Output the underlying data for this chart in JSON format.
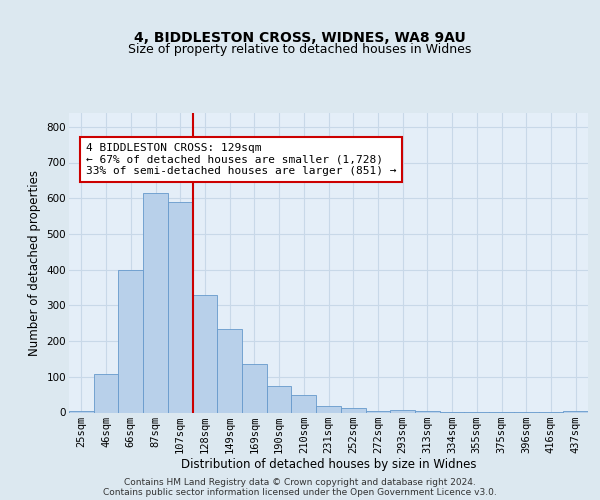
{
  "title1": "4, BIDDLESTON CROSS, WIDNES, WA8 9AU",
  "title2": "Size of property relative to detached houses in Widnes",
  "xlabel": "Distribution of detached houses by size in Widnes",
  "ylabel": "Number of detached properties",
  "categories": [
    "25sqm",
    "46sqm",
    "66sqm",
    "87sqm",
    "107sqm",
    "128sqm",
    "149sqm",
    "169sqm",
    "190sqm",
    "210sqm",
    "231sqm",
    "252sqm",
    "272sqm",
    "293sqm",
    "313sqm",
    "334sqm",
    "355sqm",
    "375sqm",
    "396sqm",
    "416sqm",
    "437sqm"
  ],
  "bar_heights": [
    5,
    107,
    400,
    615,
    590,
    328,
    235,
    135,
    75,
    50,
    18,
    13,
    5,
    6,
    3,
    2,
    2,
    1,
    1,
    1,
    5
  ],
  "bar_color": "#b8d0ea",
  "bar_edge_color": "#6699cc",
  "vline_color": "#cc0000",
  "vline_pos": 5,
  "annotation_text": "4 BIDDLESTON CROSS: 129sqm\n← 67% of detached houses are smaller (1,728)\n33% of semi-detached houses are larger (851) →",
  "annotation_box_color": "#ffffff",
  "annotation_box_edge": "#cc0000",
  "grid_color": "#c8d8e8",
  "background_color": "#dce8f0",
  "plot_bg_color": "#e4eef8",
  "ylim": [
    0,
    840
  ],
  "yticks": [
    0,
    100,
    200,
    300,
    400,
    500,
    600,
    700,
    800
  ],
  "footer": "Contains HM Land Registry data © Crown copyright and database right 2024.\nContains public sector information licensed under the Open Government Licence v3.0.",
  "title1_fontsize": 10,
  "title2_fontsize": 9,
  "xlabel_fontsize": 8.5,
  "ylabel_fontsize": 8.5,
  "tick_fontsize": 7.5,
  "annotation_fontsize": 8
}
